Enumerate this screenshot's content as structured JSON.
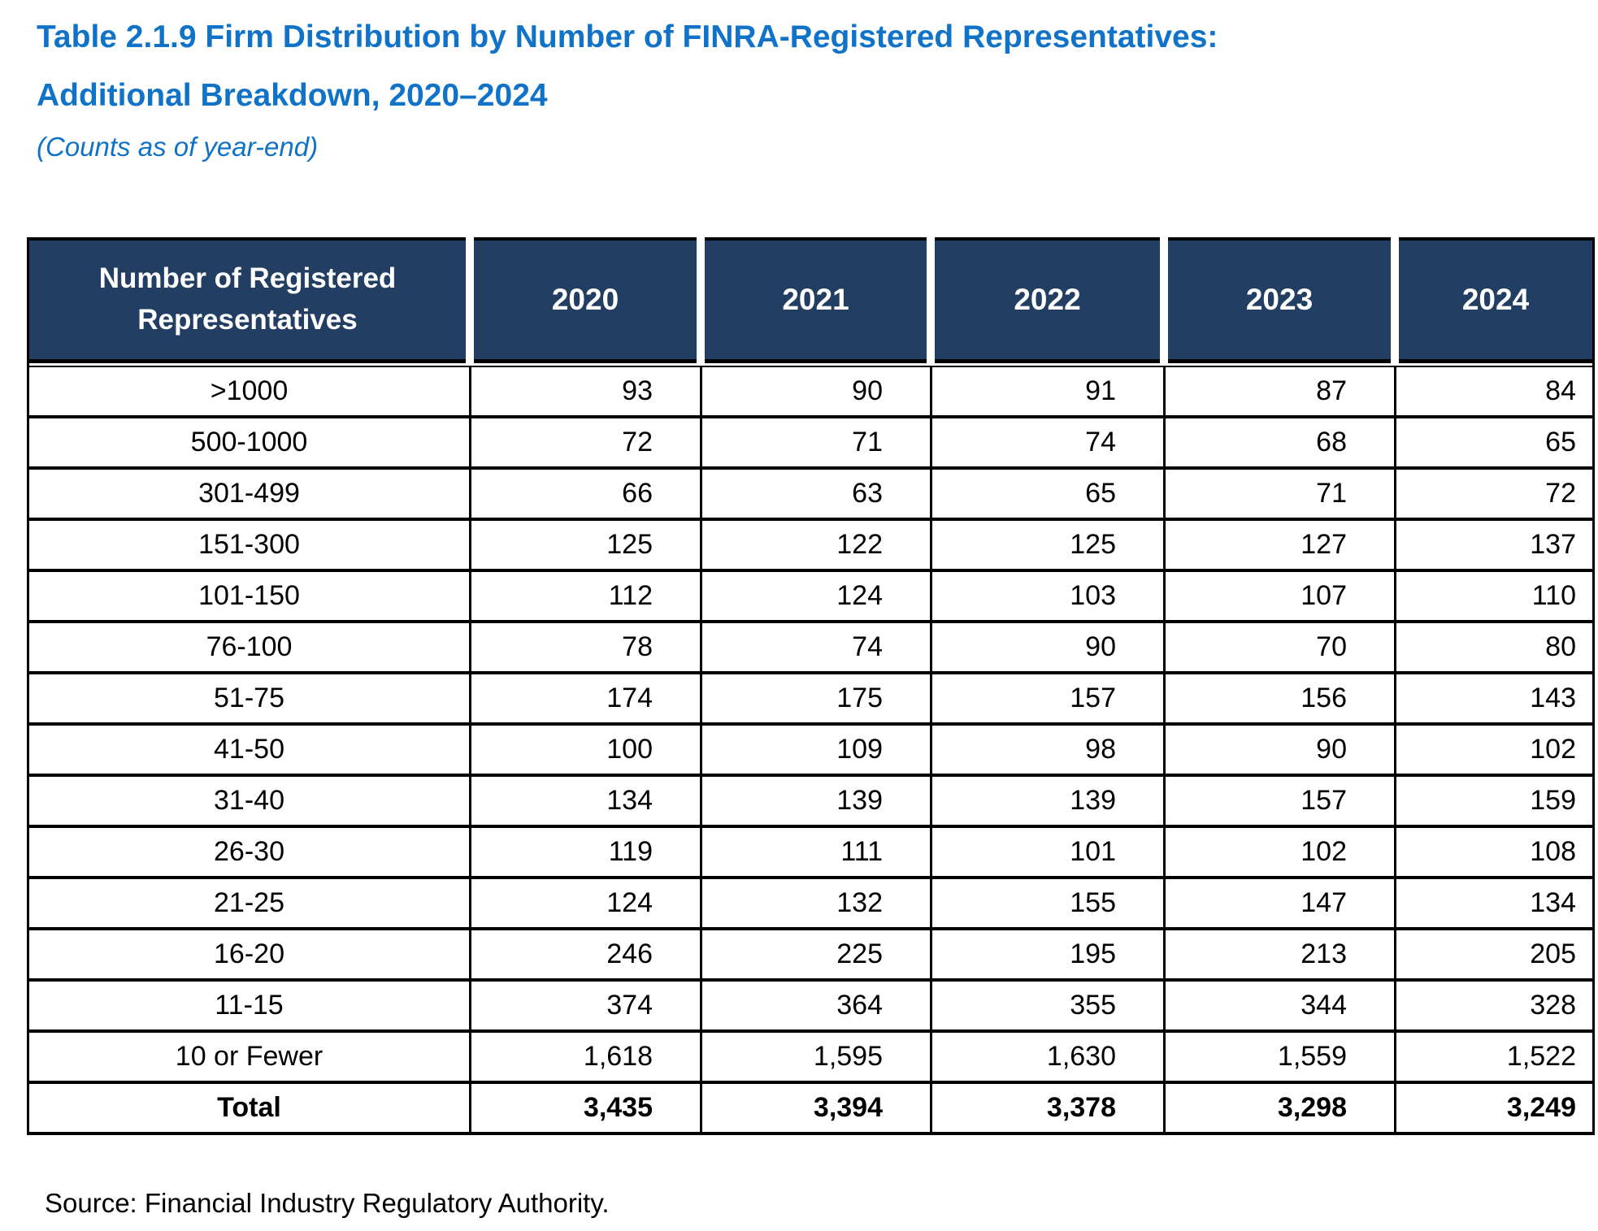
{
  "title": {
    "line1": "Table 2.1.9 Firm Distribution by Number of FINRA-Registered Representatives:",
    "line2": "Additional Breakdown, 2020–2024",
    "subtitle": "(Counts as of year-end)"
  },
  "colors": {
    "title_blue": "#1073C7",
    "header_navy": "#223E63",
    "border_black": "#000000",
    "background": "#FFFFFF"
  },
  "table": {
    "columns": [
      "Number of Registered Representatives",
      "2020",
      "2021",
      "2022",
      "2023",
      "2024"
    ],
    "rows": [
      {
        "label": ">1000",
        "values": [
          "93",
          "90",
          "91",
          "87",
          "84"
        ]
      },
      {
        "label": "500-1000",
        "values": [
          "72",
          "71",
          "74",
          "68",
          "65"
        ]
      },
      {
        "label": "301-499",
        "values": [
          "66",
          "63",
          "65",
          "71",
          "72"
        ]
      },
      {
        "label": "151-300",
        "values": [
          "125",
          "122",
          "125",
          "127",
          "137"
        ]
      },
      {
        "label": "101-150",
        "values": [
          "112",
          "124",
          "103",
          "107",
          "110"
        ]
      },
      {
        "label": "76-100",
        "values": [
          "78",
          "74",
          "90",
          "70",
          "80"
        ]
      },
      {
        "label": "51-75",
        "values": [
          "174",
          "175",
          "157",
          "156",
          "143"
        ]
      },
      {
        "label": "41-50",
        "values": [
          "100",
          "109",
          "98",
          "90",
          "102"
        ]
      },
      {
        "label": "31-40",
        "values": [
          "134",
          "139",
          "139",
          "157",
          "159"
        ]
      },
      {
        "label": "26-30",
        "values": [
          "119",
          "111",
          "101",
          "102",
          "108"
        ]
      },
      {
        "label": "21-25",
        "values": [
          "124",
          "132",
          "155",
          "147",
          "134"
        ]
      },
      {
        "label": "16-20",
        "values": [
          "246",
          "225",
          "195",
          "213",
          "205"
        ]
      },
      {
        "label": "11-15",
        "values": [
          "374",
          "364",
          "355",
          "344",
          "328"
        ]
      },
      {
        "label": "10 or Fewer",
        "values": [
          "1,618",
          "1,595",
          "1,630",
          "1,559",
          "1,522"
        ]
      },
      {
        "label": "Total",
        "values": [
          "3,435",
          "3,394",
          "3,378",
          "3,298",
          "3,249"
        ],
        "bold": true
      }
    ]
  },
  "source": "Source: Financial Industry Regulatory Authority."
}
